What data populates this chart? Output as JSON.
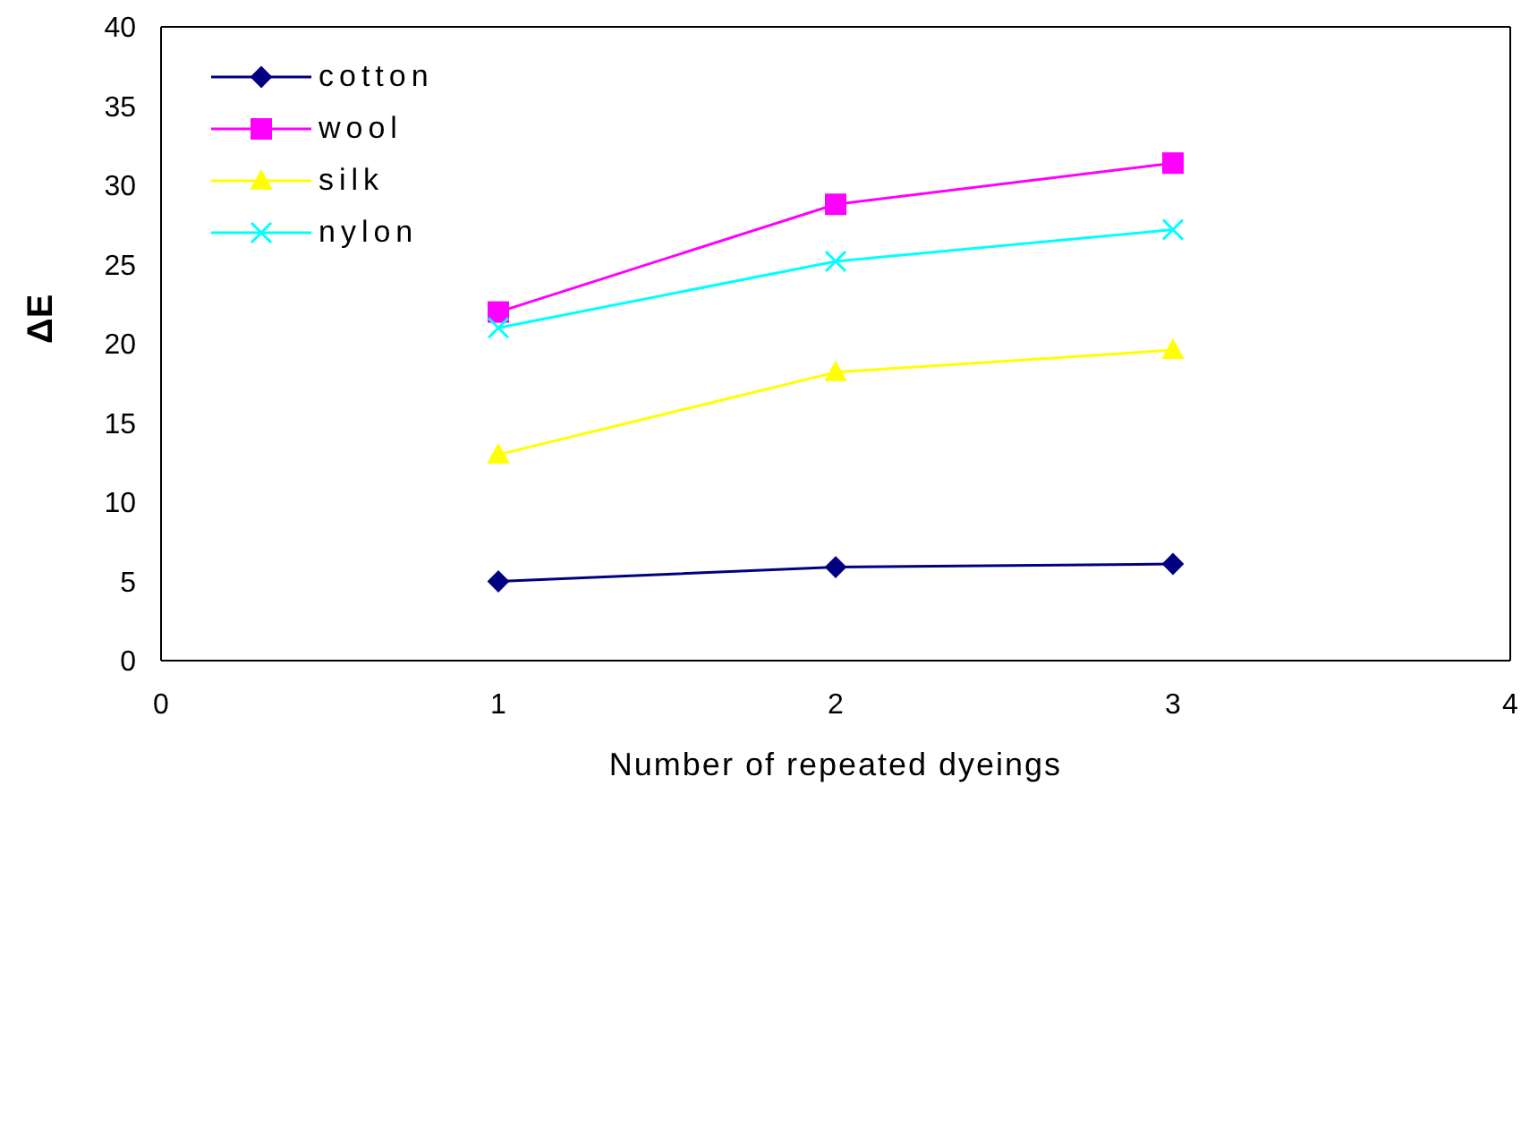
{
  "chart_data": {
    "type": "line",
    "xlabel": "Number of repeated dyeings",
    "ylabel": "ΔE",
    "x": [
      1,
      2,
      3
    ],
    "xlim": [
      0,
      4
    ],
    "xticks": [
      0,
      1,
      2,
      3,
      4
    ],
    "ylim": [
      0,
      40
    ],
    "yticks": [
      0,
      5,
      10,
      15,
      20,
      25,
      30,
      35,
      40
    ],
    "grid": false,
    "legend": "top left",
    "line_style": "solid",
    "series": [
      {
        "name": "cotton",
        "color": "#000080",
        "marker": "diamond",
        "values": [
          5,
          5.9,
          6.1
        ]
      },
      {
        "name": "wool",
        "color": "#ff00ff",
        "marker": "square",
        "values": [
          22,
          28.8,
          31.4
        ]
      },
      {
        "name": "silk",
        "color": "#ffff00",
        "marker": "triangle",
        "values": [
          13,
          18.2,
          19.6
        ]
      },
      {
        "name": "nylon",
        "color": "#00ffff",
        "marker": "cross",
        "values": [
          21,
          25.2,
          27.2
        ]
      }
    ]
  }
}
